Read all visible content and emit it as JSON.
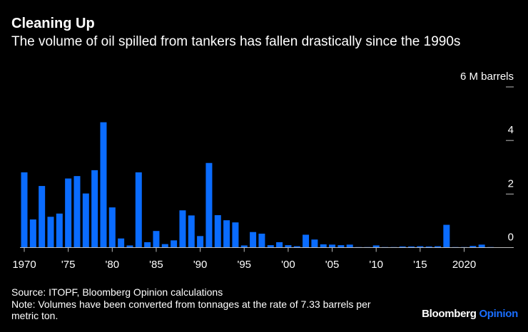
{
  "header": {
    "title": "Cleaning Up",
    "subtitle": "The volume of oil spilled from tankers has fallen drastically since the 1990s"
  },
  "chart_data": {
    "type": "bar",
    "title": "Cleaning Up",
    "subtitle": "The volume of oil spilled from tankers has fallen drastically since the 1990s",
    "unit_label": "6 M barrels",
    "ylim": [
      0,
      6
    ],
    "yticks": [
      {
        "value": 6,
        "label": "6 M barrels"
      },
      {
        "value": 4,
        "label": "4"
      },
      {
        "value": 2,
        "label": "2"
      },
      {
        "value": 0,
        "label": "0"
      }
    ],
    "xticks": [
      {
        "year": 1970,
        "label": "1970"
      },
      {
        "year": 1975,
        "label": "'75"
      },
      {
        "year": 1980,
        "label": "'80"
      },
      {
        "year": 1985,
        "label": "'85"
      },
      {
        "year": 1990,
        "label": "'90"
      },
      {
        "year": 1995,
        "label": "'95"
      },
      {
        "year": 2000,
        "label": "'00"
      },
      {
        "year": 2005,
        "label": "'05"
      },
      {
        "year": 2010,
        "label": "'10"
      },
      {
        "year": 2015,
        "label": "'15"
      },
      {
        "year": 2020,
        "label": "2020"
      }
    ],
    "bar_color": "#0a6cff",
    "x": [
      1970,
      1971,
      1972,
      1973,
      1974,
      1975,
      1976,
      1977,
      1978,
      1979,
      1980,
      1981,
      1982,
      1983,
      1984,
      1985,
      1986,
      1987,
      1988,
      1989,
      1990,
      1991,
      1992,
      1993,
      1994,
      1995,
      1996,
      1997,
      1998,
      1999,
      2000,
      2001,
      2002,
      2003,
      2004,
      2005,
      2006,
      2007,
      2008,
      2009,
      2010,
      2011,
      2012,
      2013,
      2014,
      2015,
      2016,
      2017,
      2018,
      2019,
      2020,
      2021,
      2022,
      2023
    ],
    "values": [
      2.81,
      1.05,
      2.3,
      1.15,
      1.27,
      2.58,
      2.67,
      2.02,
      2.89,
      4.68,
      1.5,
      0.34,
      0.08,
      2.81,
      0.2,
      0.62,
      0.13,
      0.27,
      1.39,
      1.2,
      0.43,
      3.16,
      1.21,
      1.02,
      0.94,
      0.08,
      0.58,
      0.52,
      0.09,
      0.2,
      0.09,
      0.05,
      0.48,
      0.3,
      0.12,
      0.11,
      0.09,
      0.11,
      0.02,
      0.02,
      0.08,
      0.02,
      0.02,
      0.04,
      0.04,
      0.05,
      0.04,
      0.05,
      0.85,
      0.02,
      0.02,
      0.06,
      0.11,
      0.02
    ]
  },
  "footer": {
    "source": "Source: ITOPF, Bloomberg Opinion calculations",
    "note_line1": "Note: Volumes have been converted from tonnages at the rate of 7.33 barrels per",
    "note_line2": "metric ton.",
    "logo_brand": "Bloomberg",
    "logo_sub": "Opinion"
  }
}
